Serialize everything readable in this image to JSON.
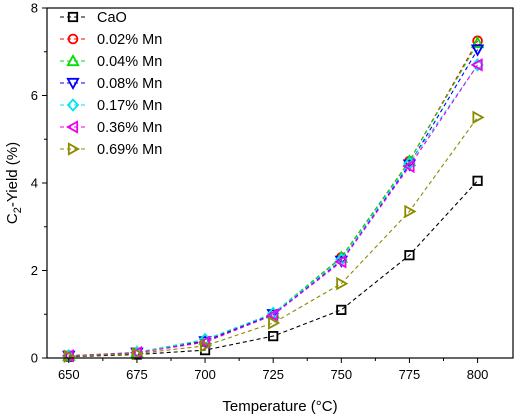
{
  "chart_data": {
    "type": "scatter",
    "xlabel": "Temperature (°C)",
    "ylabel_main": "C",
    "ylabel_sub": "2",
    "ylabel_rest": "-Yield (%)",
    "xlim": [
      642,
      813
    ],
    "ylim": [
      0,
      8
    ],
    "x": [
      650,
      675,
      700,
      725,
      750,
      775,
      800
    ],
    "x_ticks": [
      "650",
      "675",
      "700",
      "725",
      "750",
      "775",
      "800"
    ],
    "y_ticks": [
      0,
      2,
      4,
      6,
      8
    ],
    "grid": false,
    "legend_position": "top-left",
    "series": [
      {
        "name": "CaO",
        "marker": "square",
        "color": "#000000",
        "values": [
          0.03,
          0.08,
          0.18,
          0.5,
          1.1,
          2.35,
          4.05
        ]
      },
      {
        "name": "0.02% Mn",
        "marker": "circle",
        "color": "#ff0000",
        "values": [
          0.05,
          0.12,
          0.4,
          1.0,
          2.3,
          4.5,
          7.25
        ]
      },
      {
        "name": "0.04% Mn",
        "marker": "triangle-up",
        "color": "#00dd00",
        "values": [
          0.05,
          0.13,
          0.42,
          1.02,
          2.3,
          4.5,
          7.2
        ]
      },
      {
        "name": "0.08% Mn",
        "marker": "triangle-down",
        "color": "#0000ff",
        "values": [
          0.05,
          0.12,
          0.38,
          1.0,
          2.22,
          4.42,
          7.05
        ]
      },
      {
        "name": "0.17% Mn",
        "marker": "diamond",
        "color": "#00e5ee",
        "values": [
          0.05,
          0.12,
          0.42,
          1.02,
          2.25,
          4.45,
          6.7
        ]
      },
      {
        "name": "0.36% Mn",
        "marker": "triangle-left",
        "color": "#ee00ee",
        "values": [
          0.05,
          0.12,
          0.36,
          0.98,
          2.2,
          4.38,
          6.7
        ]
      },
      {
        "name": "0.69% Mn",
        "marker": "triangle-right",
        "color": "#8b8b00",
        "values": [
          0.04,
          0.1,
          0.28,
          0.8,
          1.7,
          3.35,
          5.5
        ]
      }
    ]
  }
}
